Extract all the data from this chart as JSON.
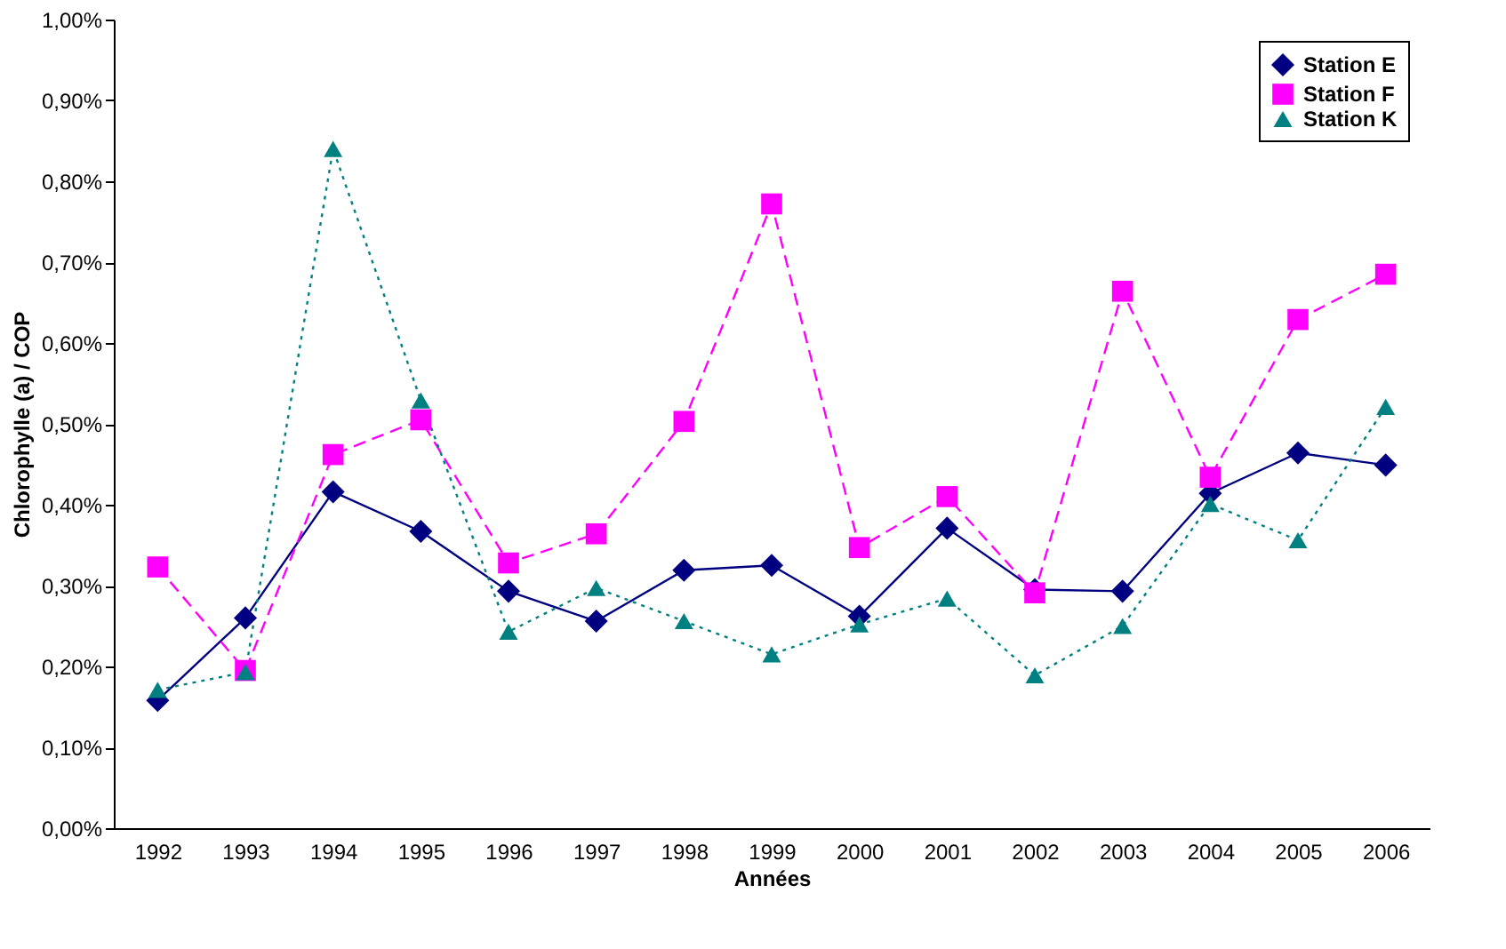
{
  "chart_data": {
    "type": "line",
    "xlabel": "Années",
    "ylabel": "Chlorophylle (a) / COP",
    "categories": [
      "1992",
      "1993",
      "1994",
      "1995",
      "1996",
      "1997",
      "1998",
      "1999",
      "2000",
      "2001",
      "2002",
      "2003",
      "2004",
      "2005",
      "2006"
    ],
    "series": [
      {
        "name": "Station E",
        "color": "#000080",
        "marker": "diamond",
        "line_style": "solid",
        "values": [
          0.158,
          0.26,
          0.416,
          0.367,
          0.293,
          0.256,
          0.319,
          0.325,
          0.262,
          0.371,
          0.295,
          0.293,
          0.414,
          0.464,
          0.449
        ]
      },
      {
        "name": "Station F",
        "color": "#ff00ff",
        "marker": "square",
        "line_style": "dashed",
        "values": [
          0.323,
          0.195,
          0.462,
          0.505,
          0.328,
          0.364,
          0.503,
          0.772,
          0.347,
          0.41,
          0.291,
          0.664,
          0.434,
          0.629,
          0.685
        ]
      },
      {
        "name": "Station K",
        "color": "#008080",
        "marker": "triangle",
        "line_style": "dotted",
        "values": [
          0.171,
          0.193,
          0.84,
          0.529,
          0.243,
          0.297,
          0.256,
          0.215,
          0.252,
          0.284,
          0.189,
          0.25,
          0.401,
          0.356,
          0.521
        ]
      }
    ],
    "ylim": [
      0,
      1
    ],
    "yticks": [
      {
        "value": 0,
        "label": "0,00%"
      },
      {
        "value": 0.1,
        "label": "0,10%"
      },
      {
        "value": 0.2,
        "label": "0,20%"
      },
      {
        "value": 0.3,
        "label": "0,30%"
      },
      {
        "value": 0.4,
        "label": "0,40%"
      },
      {
        "value": 0.5,
        "label": "0,50%"
      },
      {
        "value": 0.6,
        "label": "0,60%"
      },
      {
        "value": 0.7,
        "label": "0,70%"
      },
      {
        "value": 0.8,
        "label": "0,80%"
      },
      {
        "value": 0.9,
        "label": "0,90%"
      },
      {
        "value": 1,
        "label": "1,00%"
      }
    ],
    "grid": false,
    "legend": "top right"
  }
}
